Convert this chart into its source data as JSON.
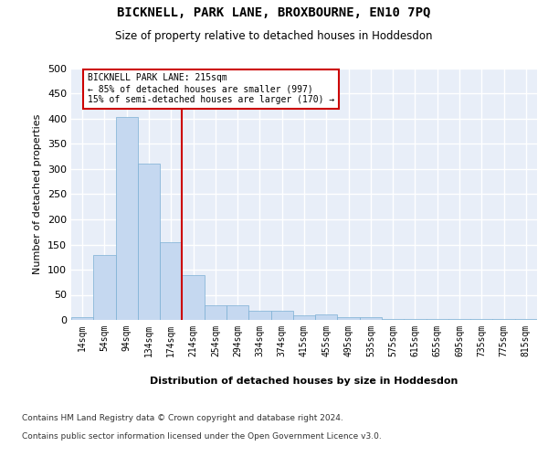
{
  "title": "BICKNELL, PARK LANE, BROXBOURNE, EN10 7PQ",
  "subtitle": "Size of property relative to detached houses in Hoddesdon",
  "xlabel": "Distribution of detached houses by size in Hoddesdon",
  "ylabel": "Number of detached properties",
  "bar_labels": [
    "14sqm",
    "54sqm",
    "94sqm",
    "134sqm",
    "174sqm",
    "214sqm",
    "254sqm",
    "294sqm",
    "334sqm",
    "374sqm",
    "415sqm",
    "455sqm",
    "495sqm",
    "535sqm",
    "575sqm",
    "615sqm",
    "655sqm",
    "695sqm",
    "735sqm",
    "775sqm",
    "815sqm"
  ],
  "bar_values": [
    5,
    130,
    403,
    310,
    155,
    90,
    29,
    29,
    19,
    19,
    10,
    11,
    5,
    5,
    1,
    1,
    1,
    1,
    1,
    1,
    1
  ],
  "bar_color": "#c5d8f0",
  "bar_edgecolor": "#7bafd4",
  "bg_color": "#e8eef8",
  "grid_color": "#ffffff",
  "vline_color": "#cc0000",
  "annotation_line1": "BICKNELL PARK LANE: 215sqm",
  "annotation_line2": "← 85% of detached houses are smaller (997)",
  "annotation_line3": "15% of semi-detached houses are larger (170) →",
  "ylim_max": 500,
  "yticks": [
    0,
    50,
    100,
    150,
    200,
    250,
    300,
    350,
    400,
    450,
    500
  ],
  "footer_line1": "Contains HM Land Registry data © Crown copyright and database right 2024.",
  "footer_line2": "Contains public sector information licensed under the Open Government Licence v3.0."
}
